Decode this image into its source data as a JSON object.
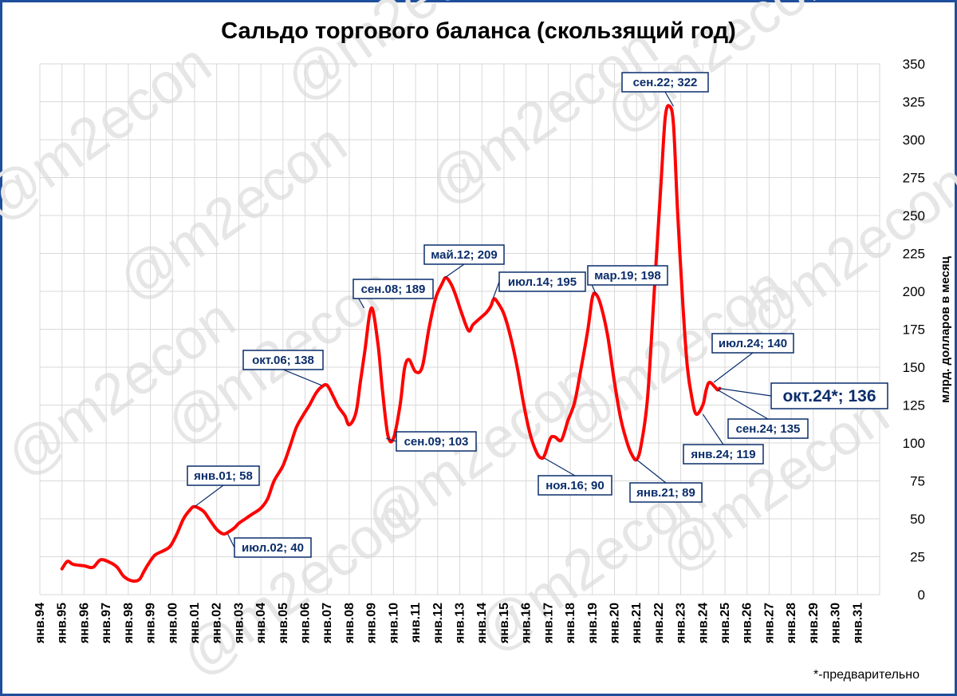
{
  "chart_data": {
    "type": "line",
    "title": "Сальдо торгового баланса (скользящий год)",
    "ylabel": "млрд. долларов в месяц",
    "xlabel": "",
    "ylim": [
      0,
      350
    ],
    "y_ticks": [
      0,
      25,
      50,
      75,
      100,
      125,
      150,
      175,
      200,
      225,
      250,
      275,
      300,
      325,
      350
    ],
    "x_tick_labels": [
      "янв.94",
      "янв.95",
      "янв.96",
      "янв.97",
      "янв.98",
      "янв.99",
      "янв.00",
      "янв.01",
      "янв.02",
      "янв.03",
      "янв.04",
      "янв.05",
      "янв.06",
      "янв.07",
      "янв.08",
      "янв.09",
      "янв.10",
      "янв.11",
      "янв.12",
      "янв.13",
      "янв.14",
      "янв.15",
      "янв.16",
      "янв.17",
      "янв.18",
      "янв.19",
      "янв.20",
      "янв.21",
      "янв.22",
      "янв.23",
      "янв.24",
      "янв.25",
      "янв.26",
      "янв.27",
      "янв.28",
      "янв.29",
      "янв.30",
      "янв.31"
    ],
    "grid": true,
    "line_color": "#ff0000",
    "series": [
      {
        "name": "",
        "x": [
          1995.0,
          1995.25,
          1995.5,
          1996.0,
          1996.4,
          1996.75,
          1997.2,
          1997.5,
          1997.8,
          1998.2,
          1998.5,
          1998.7,
          1998.9,
          1999.2,
          1999.6,
          1999.9,
          2000.2,
          2000.5,
          2000.8,
          2001.0,
          2001.4,
          2001.7,
          2002.0,
          2002.3,
          2002.5,
          2002.8,
          2003.0,
          2003.3,
          2003.6,
          2004.0,
          2004.3,
          2004.6,
          2005.0,
          2005.3,
          2005.6,
          2005.9,
          2006.2,
          2006.5,
          2006.75,
          2007.0,
          2007.3,
          2007.5,
          2007.8,
          2008.0,
          2008.3,
          2008.5,
          2008.7,
          2009.0,
          2009.3,
          2009.5,
          2009.75,
          2010.0,
          2010.3,
          2010.5,
          2010.7,
          2011.0,
          2011.3,
          2011.6,
          2011.9,
          2012.2,
          2012.37,
          2012.6,
          2012.8,
          2013.1,
          2013.4,
          2013.6,
          2013.9,
          2014.2,
          2014.4,
          2014.54,
          2014.7,
          2015.0,
          2015.3,
          2015.6,
          2015.9,
          2016.2,
          2016.5,
          2016.7,
          2016.84,
          2017.1,
          2017.3,
          2017.6,
          2017.9,
          2018.2,
          2018.5,
          2018.8,
          2019.0,
          2019.17,
          2019.4,
          2019.7,
          2020.0,
          2020.3,
          2020.6,
          2020.8,
          2021.0,
          2021.2,
          2021.5,
          2021.8,
          2022.1,
          2022.3,
          2022.5,
          2022.67,
          2022.85,
          2023.1,
          2023.3,
          2023.5,
          2023.7,
          2024.0,
          2024.15,
          2024.3,
          2024.54,
          2024.67,
          2024.76
        ],
        "values": [
          17,
          22,
          20,
          19,
          18,
          23,
          21,
          18,
          12,
          9,
          10,
          15,
          20,
          26,
          29,
          32,
          40,
          50,
          56,
          58,
          55,
          49,
          43,
          40,
          41,
          44,
          47,
          50,
          53,
          57,
          63,
          75,
          85,
          97,
          110,
          118,
          125,
          133,
          137,
          138,
          130,
          124,
          118,
          112,
          120,
          140,
          160,
          189,
          165,
          135,
          105,
          103,
          125,
          149,
          155,
          147,
          150,
          175,
          195,
          205,
          209,
          205,
          198,
          185,
          174,
          178,
          182,
          186,
          190,
          195,
          193,
          185,
          170,
          150,
          125,
          105,
          93,
          90,
          92,
          103,
          104,
          102,
          115,
          127,
          150,
          175,
          196,
          198,
          190,
          170,
          140,
          115,
          99,
          92,
          89,
          98,
          130,
          200,
          270,
          315,
          322,
          310,
          255,
          190,
          150,
          130,
          119,
          125,
          135,
          140,
          137,
          135,
          136
        ],
        "color": "#ff0000"
      }
    ],
    "annotations": [
      {
        "label": "янв.01; 58",
        "x": 2001.0,
        "y": 58
      },
      {
        "label": "июл.02; 40",
        "x": 2002.5,
        "y": 40
      },
      {
        "label": "окт.06; 138",
        "x": 2006.75,
        "y": 138
      },
      {
        "label": "сен.08; 189",
        "x": 2008.67,
        "y": 189
      },
      {
        "label": "сен.09; 103",
        "x": 2009.67,
        "y": 103
      },
      {
        "label": "май.12; 209",
        "x": 2012.33,
        "y": 209
      },
      {
        "label": "июл.14; 195",
        "x": 2014.5,
        "y": 195
      },
      {
        "label": "ноя.16; 90",
        "x": 2016.83,
        "y": 90
      },
      {
        "label": "мар.19; 198",
        "x": 2019.17,
        "y": 198
      },
      {
        "label": "янв.21; 89",
        "x": 2021.0,
        "y": 89
      },
      {
        "label": "сен.22; 322",
        "x": 2022.67,
        "y": 322
      },
      {
        "label": "янв.24; 119",
        "x": 2024.0,
        "y": 119
      },
      {
        "label": "июл.24; 140",
        "x": 2024.5,
        "y": 140
      },
      {
        "label": "сен.24; 135",
        "x": 2024.67,
        "y": 135
      },
      {
        "label": "окт.24*; 136",
        "x": 2024.75,
        "y": 136
      }
    ],
    "footnote": "*-предварительно"
  },
  "watermark": "@m2econ"
}
